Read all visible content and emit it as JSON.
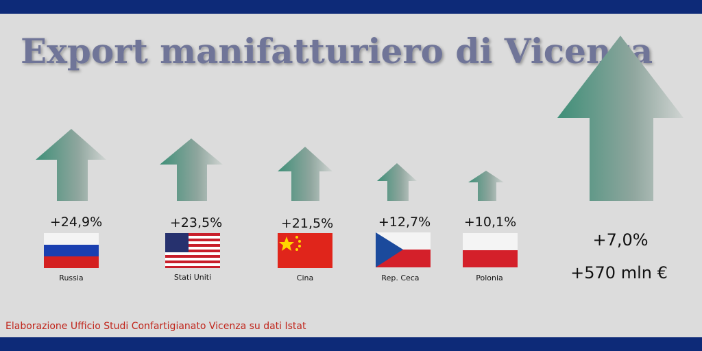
{
  "header": {
    "title": "Export manifatturiero di Vicenza"
  },
  "countries": [
    {
      "name": "Russia",
      "change": "+24,9%"
    },
    {
      "name": "Stati Uniti",
      "change": "+23,5%"
    },
    {
      "name": "Cina",
      "change": "+21,5%"
    },
    {
      "name": "Rep. Ceca",
      "change": "+12,7%"
    },
    {
      "name": "Polonia",
      "change": "+10,1%"
    }
  ],
  "total": {
    "change": "+7,0%",
    "amount": "+570 mln €"
  },
  "footer": {
    "source": "Elaborazione Ufficio Studi Confartigianato Vicenza su dati Istat"
  }
}
